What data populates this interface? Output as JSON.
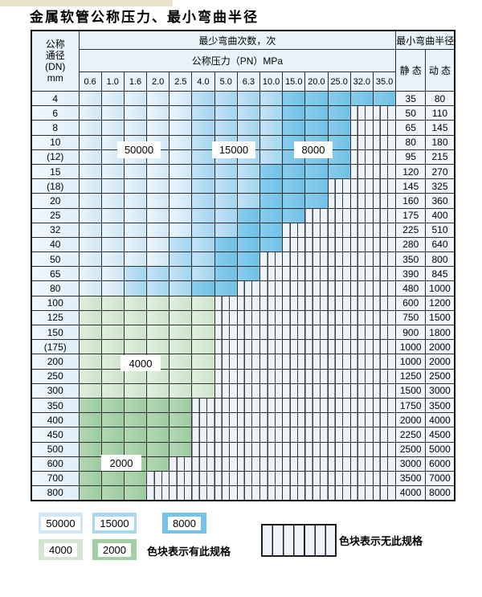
{
  "title": "金属软管公称压力、最小弯曲半径",
  "table": {
    "dn_header_lines": [
      "公称",
      "通径",
      "(DN)",
      "mm"
    ],
    "cycles_header": "最少弯曲次数，次",
    "pn_header": "公称压力（PN）MPa",
    "radius_header": "最小弯曲半径",
    "static_header": "静 态",
    "dynamic_header": "动 态",
    "pressures": [
      "0.6",
      "1.0",
      "1.6",
      "2.0",
      "2.5",
      "4.0",
      "5.0",
      "6.3",
      "10.0",
      "15.0",
      "20.0",
      "25.0",
      "32.0",
      "35.0"
    ],
    "cell_states": {
      "A": "50000",
      "B": "15000",
      "C": "8000",
      "G": "4000",
      "H": "2000",
      "-": "none"
    },
    "rows": [
      {
        "dn": "4",
        "pattern": "AAAAABBBBCCCCC",
        "static": "35",
        "dynamic": "80"
      },
      {
        "dn": "6",
        "pattern": "AAAAABBBBCCC--",
        "static": "50",
        "dynamic": "110"
      },
      {
        "dn": "8",
        "pattern": "AAAAABBBBCCC--",
        "static": "65",
        "dynamic": "145"
      },
      {
        "dn": "10",
        "pattern": "AAAAABBBBCCC--",
        "static": "80",
        "dynamic": "180"
      },
      {
        "dn": "(12)",
        "pattern": "AAAAABBBBCCC--",
        "static": "95",
        "dynamic": "215"
      },
      {
        "dn": "15",
        "pattern": "AAAAABBBCCCC--",
        "static": "120",
        "dynamic": "270"
      },
      {
        "dn": "(18)",
        "pattern": "AAAAABBBCCC---",
        "static": "145",
        "dynamic": "325"
      },
      {
        "dn": "20",
        "pattern": "AAAAABBBCCC---",
        "static": "160",
        "dynamic": "360"
      },
      {
        "dn": "25",
        "pattern": "AAAAABBCCC----",
        "static": "175",
        "dynamic": "400"
      },
      {
        "dn": "32",
        "pattern": "AAAAABBCC-----",
        "static": "225",
        "dynamic": "510"
      },
      {
        "dn": "40",
        "pattern": "AAAABBCCC-----",
        "static": "280",
        "dynamic": "640"
      },
      {
        "dn": "50",
        "pattern": "AAAABBCC------",
        "static": "350",
        "dynamic": "800"
      },
      {
        "dn": "65",
        "pattern": "AABBBBCC------",
        "static": "390",
        "dynamic": "845"
      },
      {
        "dn": "80",
        "pattern": "AABBBCC-------",
        "static": "480",
        "dynamic": "1000"
      },
      {
        "dn": "100",
        "pattern": "GGGGGG--------",
        "static": "600",
        "dynamic": "1200"
      },
      {
        "dn": "125",
        "pattern": "GGGGGG--------",
        "static": "750",
        "dynamic": "1500"
      },
      {
        "dn": "150",
        "pattern": "GGGGGG--------",
        "static": "900",
        "dynamic": "1800"
      },
      {
        "dn": "(175)",
        "pattern": "GGGGGG--------",
        "static": "1000",
        "dynamic": "2000"
      },
      {
        "dn": "200",
        "pattern": "GGGGGG--------",
        "static": "1000",
        "dynamic": "2000"
      },
      {
        "dn": "250",
        "pattern": "GGGGGG--------",
        "static": "1250",
        "dynamic": "2500"
      },
      {
        "dn": "300",
        "pattern": "GGGGGG--------",
        "static": "1500",
        "dynamic": "3000"
      },
      {
        "dn": "350",
        "pattern": "HHHHH---------",
        "static": "1750",
        "dynamic": "3500"
      },
      {
        "dn": "400",
        "pattern": "HHHHH---------",
        "static": "2000",
        "dynamic": "4000"
      },
      {
        "dn": "450",
        "pattern": "HHHHH---------",
        "static": "2250",
        "dynamic": "4500"
      },
      {
        "dn": "500",
        "pattern": "HHHHH---------",
        "static": "2500",
        "dynamic": "5000"
      },
      {
        "dn": "600",
        "pattern": "HHHH----------",
        "static": "3000",
        "dynamic": "6000"
      },
      {
        "dn": "700",
        "pattern": "HHH-----------",
        "static": "3500",
        "dynamic": "7000"
      },
      {
        "dn": "800",
        "pattern": "HHH-----------",
        "static": "4000",
        "dynamic": "8000"
      }
    ]
  },
  "overlays": [
    "50000",
    "15000",
    "8000",
    "4000",
    "2000"
  ],
  "legend": {
    "swatches": [
      "50000",
      "15000",
      "8000",
      "4000",
      "2000"
    ],
    "available_text": "色块表示有此规格",
    "unavailable_text": "色块表示无此规格"
  },
  "colors": {
    "50000": "#cfe7f6",
    "15000": "#a8d7f1",
    "8000": "#74c3e8",
    "4000": "#d3e7d0",
    "2000": "#a3cfa5",
    "striped_bg": "#eef3f9",
    "grid_line": "#2e2e2e",
    "header_bg": "#e8f2f9"
  }
}
